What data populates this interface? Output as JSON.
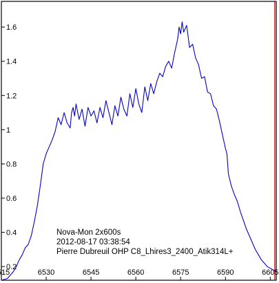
{
  "chart_data": {
    "type": "line",
    "xlabel": "",
    "ylabel": "",
    "xlim": [
      6515,
      6607
    ],
    "ylim": [
      0.12,
      1.75
    ],
    "grid": false,
    "x_ticks": [
      6515,
      6530,
      6545,
      6560,
      6575,
      6590,
      6605
    ],
    "x_tick_labels": [
      "6515",
      "6530",
      "6545",
      "6560",
      "6575",
      "6590",
      "6605"
    ],
    "y_ticks": [
      0.2,
      0.4,
      0.6,
      0.8,
      1.0,
      1.2,
      1.4,
      1.6
    ],
    "y_tick_labels": [
      "0.2",
      "0.4",
      "0.6",
      "0.8",
      "1",
      "1.2",
      "1.4",
      "1.6"
    ],
    "annotations": [
      "Nova-Mon   2x600s",
      "2012-08-17 03:38:54",
      "Pierre Dubreuil OHP C8_Lhires3_2400_Atik314L+"
    ],
    "marker_line": {
      "x": 6606.5,
      "color": "#b40000"
    },
    "series": [
      {
        "color": "#0000cc",
        "x": [
          6515,
          6517,
          6519,
          6520,
          6521,
          6522,
          6523,
          6524,
          6525,
          6526,
          6527,
          6528,
          6529,
          6530,
          6531,
          6532,
          6533,
          6534,
          6535,
          6536,
          6537,
          6538,
          6538.5,
          6539,
          6539.5,
          6540,
          6541,
          6542,
          6543,
          6544,
          6545,
          6546,
          6547,
          6548,
          6549,
          6550,
          6551,
          6552,
          6553,
          6554,
          6555,
          6556,
          6557,
          6558,
          6559,
          6560,
          6561,
          6562,
          6563,
          6564,
          6565,
          6566,
          6567,
          6568,
          6569,
          6570,
          6571,
          6572,
          6573,
          6574,
          6574.5,
          6575,
          6575.5,
          6576,
          6577,
          6578,
          6579,
          6580,
          6581,
          6582,
          6583,
          6584,
          6585,
          6586,
          6587,
          6588,
          6589,
          6590,
          6590.5,
          6591,
          6592,
          6593,
          6594,
          6595,
          6596,
          6597,
          6598,
          6599,
          6600,
          6601,
          6602,
          6603,
          6604,
          6605,
          6606,
          6607
        ],
        "y": [
          0.12,
          0.13,
          0.17,
          0.2,
          0.24,
          0.27,
          0.31,
          0.33,
          0.38,
          0.46,
          0.55,
          0.67,
          0.8,
          0.86,
          0.9,
          0.94,
          0.99,
          1.07,
          1.03,
          1.1,
          1.04,
          1.01,
          1.1,
          1.13,
          1.08,
          1.15,
          1.06,
          1.12,
          1.02,
          1.13,
          1.08,
          1.11,
          1.04,
          1.13,
          1.07,
          1.17,
          1.1,
          1.03,
          1.14,
          1.08,
          1.19,
          1.12,
          1.08,
          1.21,
          1.13,
          1.24,
          1.15,
          1.1,
          1.25,
          1.17,
          1.27,
          1.21,
          1.28,
          1.33,
          1.31,
          1.37,
          1.4,
          1.36,
          1.45,
          1.53,
          1.6,
          1.56,
          1.63,
          1.57,
          1.61,
          1.48,
          1.5,
          1.42,
          1.38,
          1.3,
          1.31,
          1.22,
          1.21,
          1.14,
          1.12,
          1.05,
          0.97,
          0.89,
          0.86,
          0.74,
          0.67,
          0.62,
          0.58,
          0.52,
          0.47,
          0.42,
          0.38,
          0.34,
          0.3,
          0.27,
          0.24,
          0.22,
          0.2,
          0.19,
          0.18,
          0.17
        ]
      }
    ]
  }
}
